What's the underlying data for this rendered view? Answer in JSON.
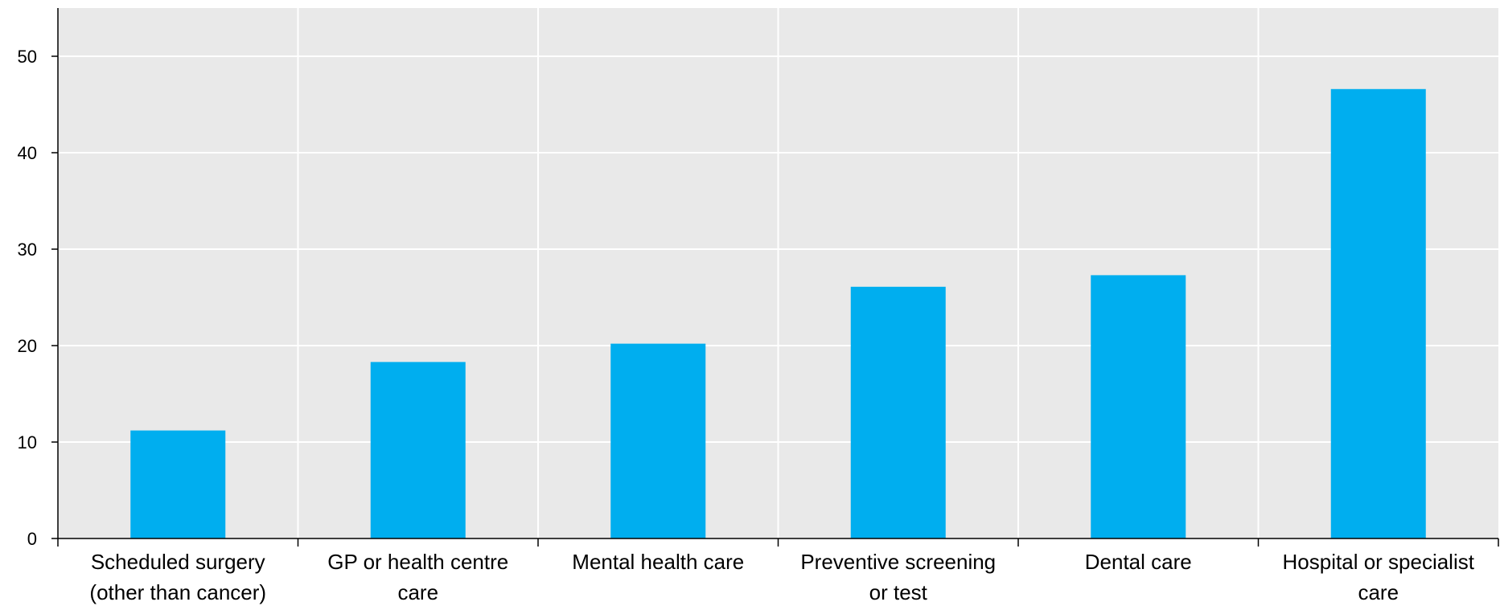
{
  "chart_data": {
    "type": "bar",
    "title": "",
    "xlabel": "",
    "ylabel": "",
    "categories": [
      [
        "Scheduled surgery",
        "(other than cancer)"
      ],
      [
        "GP or health centre",
        "care"
      ],
      [
        "Mental health care"
      ],
      [
        "Preventive screening",
        "or test"
      ],
      [
        "Dental care"
      ],
      [
        "Hospital or specialist",
        "care"
      ]
    ],
    "values": [
      11.2,
      18.3,
      20.2,
      26.1,
      27.3,
      46.6
    ],
    "ylim": [
      0,
      55
    ],
    "yticks": [
      0,
      10,
      20,
      30,
      40,
      50
    ],
    "grid": true,
    "colors": {
      "bar": "#00AEEF",
      "plot_background": "#E9E9E9",
      "grid": "#FFFFFF",
      "axis": "#000000"
    }
  }
}
